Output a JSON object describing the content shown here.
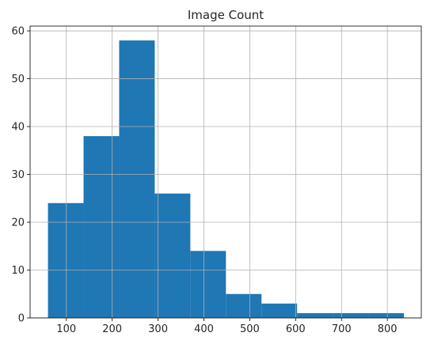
{
  "chart_data": {
    "type": "bar",
    "title": "Image Count",
    "xlabel": "",
    "ylabel": "",
    "grid": true,
    "bar_color": "#1f77b4",
    "xlim": [
      21,
      874
    ],
    "ylim": [
      0,
      61
    ],
    "xticks": [
      100,
      200,
      300,
      400,
      500,
      600,
      700,
      800
    ],
    "yticks": [
      0,
      10,
      20,
      30,
      40,
      50,
      60
    ],
    "bins": [
      {
        "x0": 60,
        "x1": 137.6,
        "count": 24
      },
      {
        "x0": 137.6,
        "x1": 215.2,
        "count": 38
      },
      {
        "x0": 215.2,
        "x1": 292.8,
        "count": 58
      },
      {
        "x0": 292.8,
        "x1": 370.4,
        "count": 26
      },
      {
        "x0": 370.4,
        "x1": 448.0,
        "count": 14
      },
      {
        "x0": 448.0,
        "x1": 525.6,
        "count": 5
      },
      {
        "x0": 525.6,
        "x1": 603.2,
        "count": 3
      },
      {
        "x0": 603.2,
        "x1": 680.8,
        "count": 1
      },
      {
        "x0": 680.8,
        "x1": 758.4,
        "count": 1
      },
      {
        "x0": 758.4,
        "x1": 836.0,
        "count": 1
      }
    ]
  }
}
